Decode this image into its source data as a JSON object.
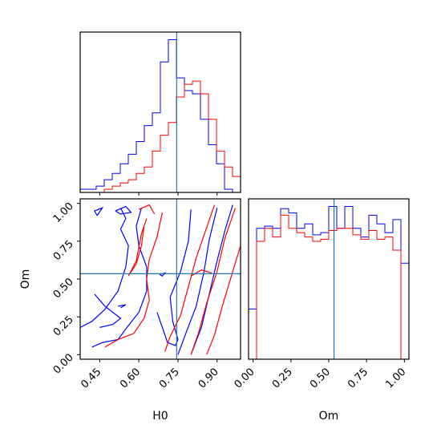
{
  "chart_data": {
    "type": "corner",
    "title": "",
    "series_colors": {
      "first": "#0000ff",
      "second": "#ff0000"
    },
    "truth": {
      "H0": 0.745,
      "Om": 0.535,
      "color": "#1f77b4"
    },
    "parameters": [
      "H0",
      "Om"
    ],
    "axes": {
      "H0": {
        "label": "H0",
        "range": [
          0.375,
          0.99
        ],
        "ticks": [
          0.45,
          0.6,
          0.75,
          0.9
        ],
        "tick_labels": [
          "0.45",
          "0.60",
          "0.75",
          "0.90"
        ]
      },
      "Om": {
        "label": "Om",
        "range": [
          -0.03,
          1.03
        ],
        "ticks": [
          0.0,
          0.25,
          0.5,
          0.75,
          1.0
        ],
        "tick_labels": [
          "0.00",
          "0.25",
          "0.50",
          "0.75",
          "1.00"
        ]
      }
    },
    "hist_H0": {
      "bin_edges": [
        0.375,
        0.40575,
        0.4365,
        0.46725,
        0.498,
        0.52875,
        0.5595,
        0.59025,
        0.621,
        0.65175,
        0.6825,
        0.71325,
        0.744,
        0.77475,
        0.8055,
        0.83625,
        0.867,
        0.89775,
        0.9285,
        0.95925,
        0.99
      ],
      "series": [
        {
          "color": "#0000ff",
          "values": [
            1,
            1,
            2,
            4,
            6,
            9,
            12,
            16,
            21,
            25,
            41,
            48,
            36,
            32,
            31,
            23,
            15,
            9,
            1,
            0
          ]
        },
        {
          "color": "#ff0000",
          "values": [
            0,
            0,
            0,
            1,
            2,
            3,
            4,
            6,
            8,
            13,
            18,
            22,
            30,
            34,
            35,
            31,
            23,
            13,
            8,
            5
          ]
        }
      ]
    },
    "hist_Om": {
      "bin_edges": [
        -0.03,
        0.023,
        0.076,
        0.129,
        0.182,
        0.235,
        0.288,
        0.341,
        0.394,
        0.447,
        0.5,
        0.553,
        0.606,
        0.659,
        0.712,
        0.765,
        0.818,
        0.871,
        0.924,
        0.977,
        1.03
      ],
      "series": [
        {
          "color": "#0000ff",
          "values": [
            23,
            60,
            61,
            60,
            69,
            67,
            60,
            62,
            57,
            58,
            70,
            60,
            70,
            60,
            56,
            66,
            62,
            58,
            64,
            44
          ]
        },
        {
          "color": "#ff0000",
          "values": [
            0,
            54,
            60,
            56,
            66,
            60,
            58,
            56,
            54,
            55,
            59,
            60,
            60,
            57,
            55,
            59,
            55,
            56,
            50,
            0
          ]
        }
      ]
    },
    "contours": [
      {
        "color": "#0000ff",
        "paths": [
          [
            [
              0.375,
              0.18
            ],
            [
              0.42,
              0.22
            ],
            [
              0.47,
              0.3
            ],
            [
              0.52,
              0.42
            ],
            [
              0.55,
              0.58
            ],
            [
              0.56,
              0.72
            ],
            [
              0.53,
              0.83
            ],
            [
              0.55,
              0.9
            ],
            [
              0.53,
              0.97
            ]
          ],
          [
            [
              0.42,
              0.05
            ],
            [
              0.46,
              0.08
            ],
            [
              0.52,
              0.1
            ],
            [
              0.55,
              0.17
            ],
            [
              0.6,
              0.28
            ],
            [
              0.63,
              0.42
            ],
            [
              0.63,
              0.58
            ],
            [
              0.6,
              0.72
            ],
            [
              0.59,
              0.85
            ],
            [
              0.61,
              0.97
            ]
          ],
          [
            [
              0.45,
              0.18
            ],
            [
              0.5,
              0.2
            ],
            [
              0.53,
              0.24
            ],
            [
              0.5,
              0.28
            ],
            [
              0.47,
              0.32
            ],
            [
              0.43,
              0.4
            ]
          ],
          [
            [
              0.44,
              0.92
            ],
            [
              0.46,
              0.97
            ],
            [
              0.43,
              0.95
            ],
            [
              0.44,
              0.92
            ]
          ],
          [
            [
              0.51,
              0.95
            ],
            [
              0.55,
              0.98
            ],
            [
              0.57,
              0.94
            ],
            [
              0.53,
              0.93
            ],
            [
              0.51,
              0.95
            ]
          ],
          [
            [
              0.67,
              0.28
            ],
            [
              0.69,
              0.18
            ],
            [
              0.71,
              0.08
            ],
            [
              0.74,
              0.06
            ],
            [
              0.75,
              0.1
            ],
            [
              0.73,
              0.22
            ],
            [
              0.72,
              0.38
            ],
            [
              0.76,
              0.55
            ],
            [
              0.79,
              0.75
            ],
            [
              0.8,
              0.96
            ]
          ],
          [
            [
              0.75,
              0.0
            ],
            [
              0.78,
              0.14
            ],
            [
              0.82,
              0.32
            ],
            [
              0.85,
              0.55
            ],
            [
              0.87,
              0.76
            ],
            [
              0.9,
              0.97
            ]
          ],
          [
            [
              0.8,
              0.0
            ],
            [
              0.84,
              0.18
            ],
            [
              0.87,
              0.4
            ],
            [
              0.9,
              0.62
            ],
            [
              0.93,
              0.82
            ],
            [
              0.96,
              0.99
            ]
          ],
          [
            [
              0.68,
              0.53
            ],
            [
              0.7,
              0.54
            ],
            [
              0.69,
              0.52
            ],
            [
              0.68,
              0.53
            ]
          ],
          [
            [
              0.52,
              0.32
            ],
            [
              0.55,
              0.33
            ],
            [
              0.53,
              0.31
            ]
          ]
        ]
      },
      {
        "color": "#ff0000",
        "paths": [
          [
            [
              0.47,
              0.05
            ],
            [
              0.52,
              0.1
            ],
            [
              0.58,
              0.14
            ],
            [
              0.62,
              0.24
            ],
            [
              0.64,
              0.36
            ],
            [
              0.63,
              0.5
            ],
            [
              0.64,
              0.63
            ],
            [
              0.67,
              0.78
            ],
            [
              0.69,
              0.94
            ]
          ],
          [
            [
              0.56,
              0.52
            ],
            [
              0.59,
              0.6
            ],
            [
              0.61,
              0.72
            ],
            [
              0.62,
              0.85
            ],
            [
              0.63,
              0.9
            ],
            [
              0.61,
              0.8
            ],
            [
              0.59,
              0.62
            ],
            [
              0.56,
              0.52
            ]
          ],
          [
            [
              0.7,
              0.02
            ],
            [
              0.72,
              0.12
            ],
            [
              0.76,
              0.26
            ],
            [
              0.79,
              0.45
            ],
            [
              0.82,
              0.64
            ],
            [
              0.86,
              0.84
            ],
            [
              0.89,
              0.99
            ]
          ],
          [
            [
              0.8,
              0.0
            ],
            [
              0.83,
              0.15
            ],
            [
              0.86,
              0.34
            ],
            [
              0.9,
              0.55
            ],
            [
              0.93,
              0.77
            ],
            [
              0.97,
              0.97
            ]
          ],
          [
            [
              0.86,
              0.0
            ],
            [
              0.89,
              0.13
            ],
            [
              0.92,
              0.32
            ],
            [
              0.96,
              0.55
            ],
            [
              0.99,
              0.72
            ]
          ],
          [
            [
              0.8,
              0.52
            ],
            [
              0.84,
              0.56
            ],
            [
              0.88,
              0.54
            ]
          ],
          [
            [
              0.6,
              0.96
            ],
            [
              0.64,
              0.99
            ],
            [
              0.66,
              0.93
            ]
          ]
        ]
      }
    ]
  }
}
